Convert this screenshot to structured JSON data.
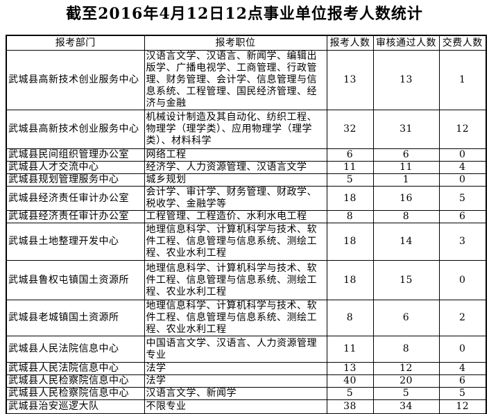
{
  "title": "截至2016年4月12日12点事业单位报考人数统计",
  "colors": {
    "background": "#ffffff",
    "border": "#000000",
    "text": "#000000"
  },
  "table": {
    "headers": [
      "报考部门",
      "报考职位",
      "报考人数",
      "审核通过人数",
      "交费人数"
    ],
    "rows": [
      {
        "dept": "武城县高新技术创业服务中心",
        "position": "汉语言文学、汉语言、新闻学、编辑出版学、广播电视学、工商管理、行政管理、财务管理、会计学、信息管理与信息系统、工程管理、国民经济管理、经济与金融",
        "applicants": "13",
        "approved": "13",
        "paid": "1"
      },
      {
        "dept": "武城县高新技术创业服务中心",
        "position": "机械设计制造及其自动化、纺织工程、物理学（理学类）、应用物理学（理学类）、材料科学",
        "applicants": "32",
        "approved": "31",
        "paid": "12"
      },
      {
        "dept": "武城县民间组织管理办公室",
        "position": "网络工程",
        "applicants": "6",
        "approved": "6",
        "paid": "0"
      },
      {
        "dept": "武城县人才交流中心",
        "position": "经济学、人力资源管理、汉语言文学",
        "applicants": "11",
        "approved": "11",
        "paid": "4"
      },
      {
        "dept": "武城县规划管理服务中心",
        "position": "城乡规划",
        "applicants": "5",
        "approved": "1",
        "paid": "0"
      },
      {
        "dept": "武城县经济责任审计办公室",
        "position": "会计学、审计学、财务管理、财政学、税收学、金融学等",
        "applicants": "18",
        "approved": "16",
        "paid": "5"
      },
      {
        "dept": "武城县经济责任审计办公室",
        "position": "工程管理、工程造价、水利水电工程",
        "applicants": "8",
        "approved": "8",
        "paid": "6"
      },
      {
        "dept": "武城县土地整理开发中心",
        "position": "地理信息科学、计算机科学与技术、软件工程、信息管理与信息系统、测绘工程、农业水利工程",
        "applicants": "18",
        "approved": "14",
        "paid": "3"
      },
      {
        "dept": "武城县鲁权屯镇国土资源所",
        "position": "地理信息科学、计算机科学与技术、软件工程、信息管理与信息系统、测绘工程、农业水利工程",
        "applicants": "18",
        "approved": "15",
        "paid": "0"
      },
      {
        "dept": "武城县老城镇国土资源所",
        "position": "地理信息科学、计算机科学与技术、软件工程、信息管理与信息系统、测绘工程、农业水利工程",
        "applicants": "8",
        "approved": "6",
        "paid": "2"
      },
      {
        "dept": "武城县人民法院信息中心",
        "position": "中国语言文学、汉语言、人力资源管理专业",
        "applicants": "11",
        "approved": "8",
        "paid": "0"
      },
      {
        "dept": "武城县人民法院信息中心",
        "position": "法学",
        "applicants": "13",
        "approved": "12",
        "paid": "4"
      },
      {
        "dept": "武城县人民检察院信息中心",
        "position": "法学",
        "applicants": "40",
        "approved": "20",
        "paid": "6"
      },
      {
        "dept": "武城县人民检察院信息中心",
        "position": "汉语言文学、新闻学",
        "applicants": "5",
        "approved": "5",
        "paid": "5"
      },
      {
        "dept": "武城县治安巡逻大队",
        "position": "不限专业",
        "applicants": "38",
        "approved": "34",
        "paid": "12"
      }
    ]
  }
}
